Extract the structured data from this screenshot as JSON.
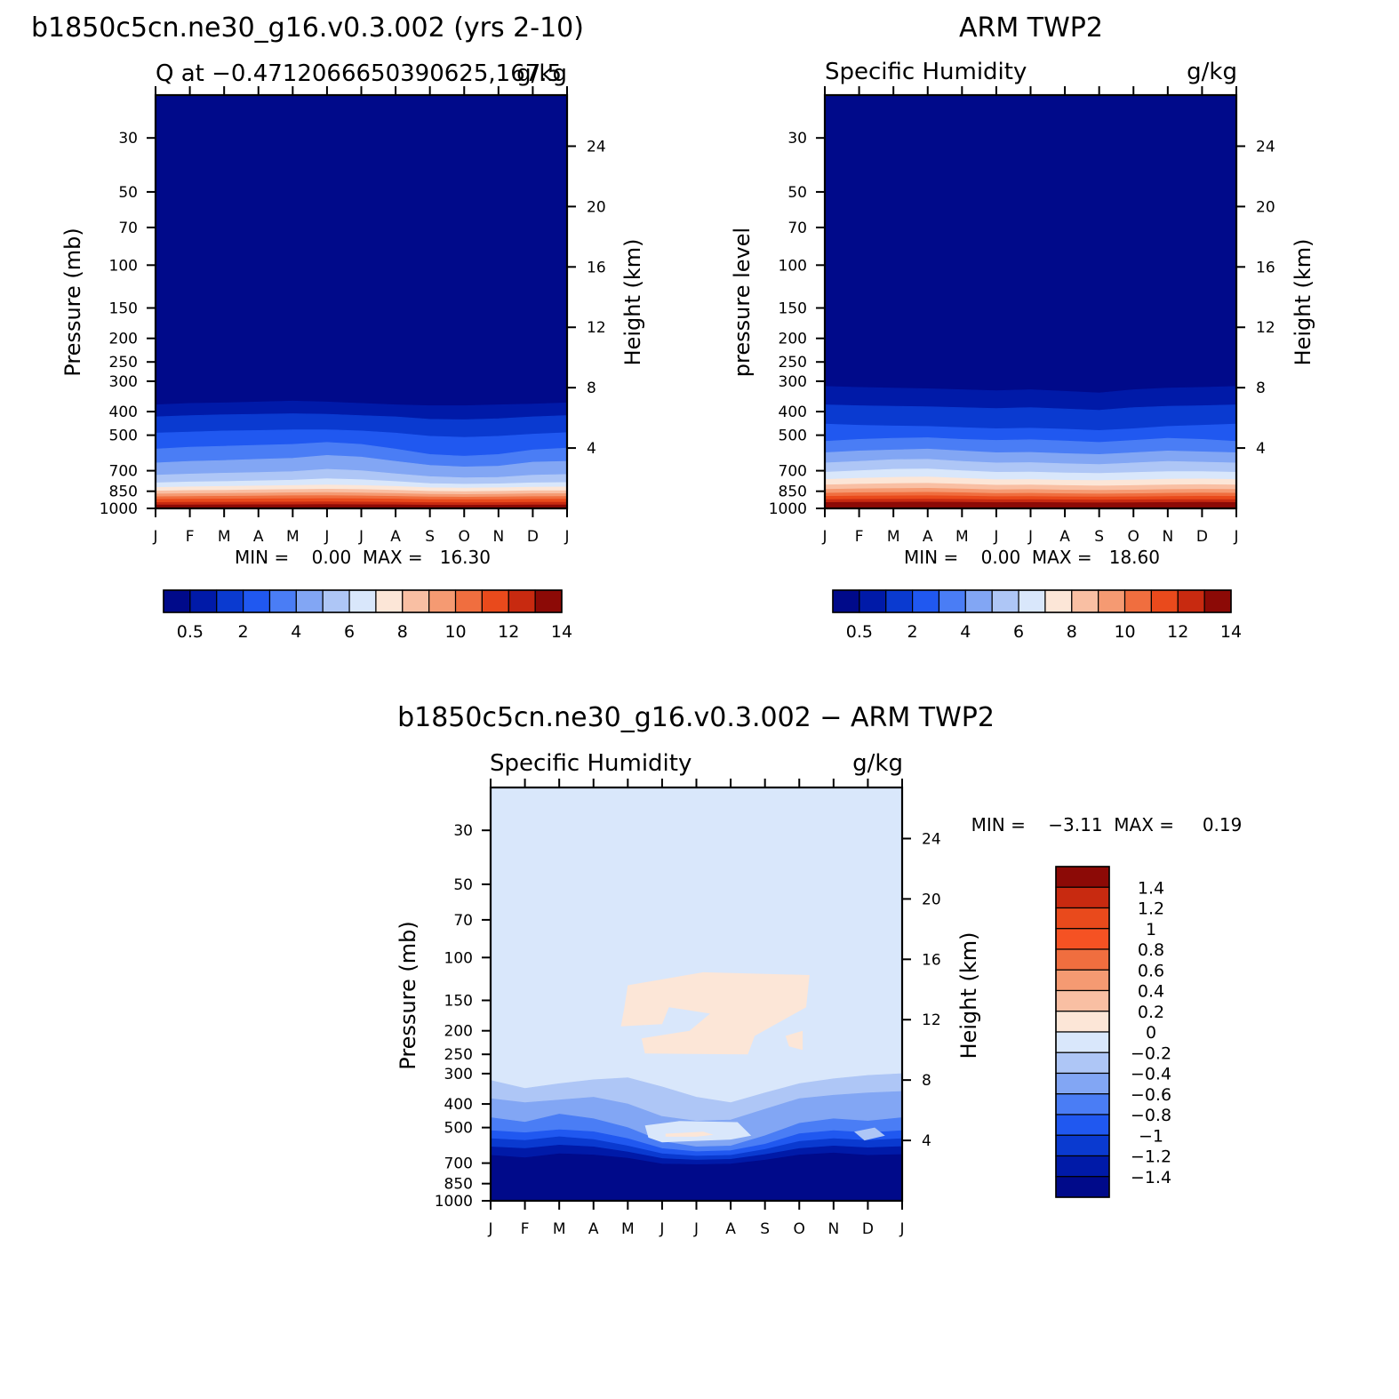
{
  "chart_data": [
    {
      "type": "heatmap",
      "title": "b1850c5cn.ne30_g16.v0.3.002 (yrs 2-10)",
      "left_subtitle": "Q at −0.4712066650390625,167.5",
      "right_subtitle": "g/kg",
      "ylabel": "Pressure (mb)",
      "ylabel_right": "Height (km)",
      "min_max": "MIN =    0.00  MAX =   16.30",
      "fill_top": "#000a8a",
      "layers": [
        {
          "color": "#001aa8",
          "depth": [
            375,
            370,
            368,
            365,
            362,
            365,
            370,
            375,
            378,
            378,
            375,
            372,
            368
          ]
        },
        {
          "color": "#0a3ad0",
          "depth": [
            420,
            415,
            412,
            410,
            408,
            410,
            415,
            420,
            430,
            432,
            428,
            420,
            415
          ]
        },
        {
          "color": "#2058f0",
          "depth": [
            490,
            485,
            480,
            478,
            475,
            475,
            480,
            490,
            505,
            510,
            505,
            495,
            488
          ]
        },
        {
          "color": "#4a7df5",
          "depth": [
            570,
            560,
            555,
            550,
            545,
            535,
            545,
            570,
            600,
            610,
            600,
            575,
            565
          ]
        },
        {
          "color": "#82a6f4",
          "depth": [
            650,
            640,
            635,
            628,
            622,
            605,
            615,
            640,
            665,
            675,
            670,
            645,
            640
          ]
        },
        {
          "color": "#aec6f6",
          "depth": [
            730,
            722,
            716,
            712,
            705,
            690,
            700,
            720,
            740,
            748,
            745,
            730,
            725
          ]
        },
        {
          "color": "#d9e7fb",
          "depth": [
            785,
            778,
            775,
            770,
            765,
            755,
            762,
            775,
            790,
            795,
            792,
            785,
            782
          ]
        },
        {
          "color": "#fce6d7",
          "depth": [
            820,
            815,
            812,
            808,
            805,
            800,
            805,
            812,
            822,
            825,
            822,
            818,
            816
          ]
        },
        {
          "color": "#f9bfa3",
          "depth": [
            848,
            844,
            842,
            839,
            836,
            833,
            836,
            842,
            850,
            852,
            850,
            846,
            845
          ]
        },
        {
          "color": "#f59a72",
          "depth": [
            872,
            869,
            867,
            865,
            862,
            860,
            863,
            868,
            874,
            876,
            874,
            870,
            869
          ]
        },
        {
          "color": "#f06e3f",
          "depth": [
            895,
            893,
            891,
            889,
            887,
            886,
            888,
            892,
            897,
            899,
            897,
            894,
            893
          ]
        },
        {
          "color": "#e94a1c",
          "depth": [
            918,
            916,
            915,
            913,
            912,
            911,
            912,
            915,
            919,
            920,
            919,
            917,
            916
          ]
        },
        {
          "color": "#c82a10",
          "depth": [
            945,
            944,
            943,
            942,
            941,
            940,
            941,
            943,
            946,
            947,
            946,
            944,
            944
          ]
        },
        {
          "color": "#8c0a06",
          "depth": [
            968,
            967,
            966,
            965,
            965,
            964,
            965,
            966,
            969,
            970,
            969,
            967,
            967
          ]
        }
      ]
    },
    {
      "type": "heatmap",
      "title": "ARM TWP2",
      "left_subtitle": "Specific Humidity",
      "right_subtitle": "g/kg",
      "ylabel": "pressure level",
      "ylabel_right": "Height (km)",
      "min_max": "MIN =    0.00  MAX =   18.60",
      "fill_top": "#000a8a",
      "layers": [
        {
          "color": "#001aa8",
          "depth": [
            315,
            318,
            320,
            322,
            325,
            328,
            325,
            330,
            335,
            325,
            320,
            318,
            315
          ]
        },
        {
          "color": "#0a3ad0",
          "depth": [
            375,
            378,
            380,
            382,
            385,
            388,
            385,
            390,
            395,
            385,
            380,
            378,
            375
          ]
        },
        {
          "color": "#2058f0",
          "depth": [
            450,
            455,
            458,
            460,
            465,
            470,
            468,
            472,
            478,
            470,
            460,
            455,
            450
          ]
        },
        {
          "color": "#4a7df5",
          "depth": [
            530,
            520,
            515,
            512,
            520,
            525,
            522,
            528,
            535,
            525,
            515,
            520,
            530
          ]
        },
        {
          "color": "#82a6f4",
          "depth": [
            590,
            580,
            575,
            570,
            580,
            590,
            588,
            595,
            600,
            590,
            580,
            585,
            590
          ]
        },
        {
          "color": "#aec6f6",
          "depth": [
            650,
            640,
            630,
            628,
            640,
            650,
            648,
            655,
            660,
            650,
            640,
            645,
            650
          ]
        },
        {
          "color": "#d9e7fb",
          "depth": [
            710,
            700,
            690,
            688,
            700,
            710,
            708,
            715,
            718,
            712,
            705,
            705,
            710
          ]
        },
        {
          "color": "#fce6d7",
          "depth": [
            760,
            752,
            745,
            742,
            752,
            762,
            760,
            766,
            768,
            764,
            758,
            756,
            760
          ]
        },
        {
          "color": "#f9bfa3",
          "depth": [
            800,
            795,
            790,
            788,
            795,
            802,
            800,
            805,
            808,
            805,
            800,
            798,
            800
          ]
        },
        {
          "color": "#f59a72",
          "depth": [
            835,
            830,
            828,
            826,
            832,
            838,
            836,
            840,
            842,
            840,
            836,
            834,
            835
          ]
        },
        {
          "color": "#f06e3f",
          "depth": [
            865,
            862,
            860,
            858,
            862,
            868,
            866,
            870,
            872,
            870,
            866,
            864,
            865
          ]
        },
        {
          "color": "#e94a1c",
          "depth": [
            892,
            890,
            888,
            887,
            890,
            894,
            893,
            896,
            897,
            896,
            893,
            891,
            892
          ]
        },
        {
          "color": "#c82a10",
          "depth": [
            920,
            918,
            917,
            916,
            918,
            921,
            920,
            922,
            923,
            922,
            920,
            919,
            920
          ]
        },
        {
          "color": "#8c0a06",
          "depth": [
            945,
            944,
            943,
            942,
            944,
            946,
            945,
            947,
            948,
            947,
            945,
            944,
            945
          ]
        }
      ]
    },
    {
      "type": "heatmap",
      "title": "b1850c5cn.ne30_g16.v0.3.002 − ARM TWP2",
      "left_subtitle": "Specific Humidity",
      "right_subtitle": "g/kg",
      "ylabel": "Pressure (mb)",
      "ylabel_right": "Height (km)",
      "min_max": "MIN =    −3.11  MAX =     0.19",
      "fill_top": "#d9e7fb",
      "layers": [
        {
          "color": "#aec6f6",
          "depth": [
            320,
            345,
            330,
            318,
            312,
            340,
            375,
            395,
            360,
            330,
            315,
            305,
            300
          ]
        },
        {
          "color": "#82a6f4",
          "depth": [
            380,
            395,
            385,
            375,
            400,
            450,
            470,
            465,
            420,
            380,
            368,
            360,
            355
          ]
        },
        {
          "color": "#4a7df5",
          "depth": [
            455,
            475,
            440,
            460,
            500,
            570,
            600,
            595,
            540,
            480,
            460,
            470,
            455
          ]
        },
        {
          "color": "#2058f0",
          "depth": [
            515,
            525,
            510,
            520,
            555,
            610,
            628,
            622,
            585,
            530,
            515,
            525,
            515
          ]
        },
        {
          "color": "#0a3ad0",
          "depth": [
            555,
            565,
            545,
            560,
            595,
            640,
            655,
            650,
            615,
            570,
            555,
            565,
            555
          ]
        },
        {
          "color": "#001aa8",
          "depth": [
            600,
            610,
            590,
            600,
            630,
            670,
            680,
            675,
            645,
            610,
            595,
            605,
            598
          ]
        },
        {
          "color": "#000a8a",
          "depth": [
            650,
            665,
            640,
            648,
            668,
            705,
            710,
            706,
            680,
            648,
            636,
            650,
            645
          ]
        }
      ],
      "blobs": [
        {
          "color": "#fce6d7",
          "month_pressure": [
            [
              4.0,
              130
            ],
            [
              6.2,
              115
            ],
            [
              9.3,
              118
            ],
            [
              9.2,
              160
            ],
            [
              7.7,
              210
            ],
            [
              7.5,
              250
            ],
            [
              4.5,
              248
            ],
            [
              4.4,
              215
            ],
            [
              5.8,
              200
            ],
            [
              6.4,
              170
            ],
            [
              5.2,
              160
            ],
            [
              5.0,
              188
            ],
            [
              3.8,
              192
            ],
            [
              3.9,
              160
            ],
            [
              4.0,
              130
            ]
          ]
        },
        {
          "color": "#fce6d7",
          "month_pressure": [
            [
              8.6,
              210
            ],
            [
              9.1,
              200
            ],
            [
              9.1,
              240
            ],
            [
              8.7,
              232
            ],
            [
              8.6,
              210
            ]
          ]
        },
        {
          "color": "#d9e7fb",
          "month_pressure": [
            [
              4.5,
              490
            ],
            [
              5.5,
              470
            ],
            [
              7.2,
              475
            ],
            [
              7.6,
              540
            ],
            [
              7.0,
              560
            ],
            [
              5.0,
              575
            ],
            [
              4.6,
              550
            ],
            [
              4.5,
              490
            ]
          ]
        },
        {
          "color": "#fce6d7",
          "month_pressure": [
            [
              5.1,
              530
            ],
            [
              6.2,
              520
            ],
            [
              6.5,
              535
            ],
            [
              6.0,
              545
            ],
            [
              5.1,
              545
            ],
            [
              5.1,
              530
            ]
          ]
        },
        {
          "color": "#aec6f6",
          "month_pressure": [
            [
              10.6,
              520
            ],
            [
              11.2,
              500
            ],
            [
              11.5,
              540
            ],
            [
              10.9,
              565
            ],
            [
              10.6,
              520
            ]
          ]
        }
      ]
    }
  ],
  "axes": {
    "pressure_levels": [
      30,
      50,
      70,
      100,
      150,
      200,
      250,
      300,
      400,
      500,
      700,
      850,
      1000
    ],
    "pressure_labels": [
      "30",
      "50",
      "70",
      "100",
      "150",
      "200",
      "250",
      "300",
      "400",
      "500",
      "700",
      "850",
      "1000"
    ],
    "height_labels": [
      "24",
      "20",
      "16",
      "12",
      "8",
      "4"
    ],
    "height_km": [
      24,
      20,
      16,
      12,
      8,
      4
    ],
    "month_labels": [
      "J",
      "F",
      "M",
      "A",
      "M",
      "J",
      "J",
      "A",
      "S",
      "O",
      "N",
      "D",
      "J"
    ],
    "ylim": [
      20,
      1000
    ]
  },
  "colorbars": {
    "top": {
      "colors": [
        "#000a8a",
        "#001aa8",
        "#0a3ad0",
        "#2058f0",
        "#4a7df5",
        "#82a6f4",
        "#aec6f6",
        "#d9e7fb",
        "#fce6d7",
        "#f9bfa3",
        "#f59a72",
        "#f06e3f",
        "#e94a1c",
        "#c82a10",
        "#8c0a06"
      ],
      "labels": [
        "0.5",
        "2",
        "4",
        "6",
        "8",
        "10",
        "12",
        "14"
      ]
    },
    "diff": {
      "colors": [
        "#8c0a06",
        "#c82a10",
        "#e94a1c",
        "#f55223",
        "#f06e3f",
        "#f59a72",
        "#f9bfa3",
        "#fce6d7",
        "#d9e7fb",
        "#aec6f6",
        "#82a6f4",
        "#4a7df5",
        "#2058f0",
        "#0a3ad0",
        "#001aa8",
        "#000a8a"
      ],
      "labels": [
        "1.4",
        "1.2",
        "1",
        "0.8",
        "0.6",
        "0.4",
        "0.2",
        "0",
        "−0.2",
        "−0.4",
        "−0.6",
        "−0.8",
        "−1",
        "−1.2",
        "−1.4"
      ]
    }
  }
}
